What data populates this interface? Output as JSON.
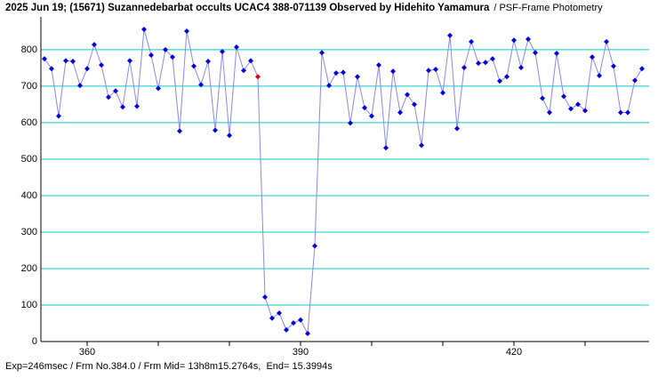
{
  "chart_data": {
    "type": "line",
    "title": "2025 Jun 19; (15671) Suzannedebarbat occults UCAC4 388-071139 Observed by Hidehito Yamamura",
    "subtitle": "/ PSF-Frame Photometry",
    "footer": "Exp=246msec / Frm No.384.0 / Frm Mid= 13h8m15.2764s,  End= 15.3994s",
    "x": [
      354,
      355,
      356,
      357,
      358,
      359,
      360,
      361,
      362,
      363,
      364,
      365,
      366,
      367,
      368,
      369,
      370,
      371,
      372,
      373,
      374,
      375,
      376,
      377,
      378,
      379,
      380,
      381,
      382,
      383,
      384,
      385,
      386,
      387,
      388,
      389,
      390,
      391,
      392,
      393,
      394,
      395,
      396,
      397,
      398,
      399,
      400,
      401,
      402,
      403,
      404,
      405,
      406,
      407,
      408,
      409,
      410,
      411,
      412,
      413,
      414,
      415,
      416,
      417,
      418,
      419,
      420,
      421,
      422,
      423,
      424,
      425,
      426,
      427,
      428,
      429,
      430,
      431,
      432,
      433,
      434,
      435,
      436,
      437,
      438
    ],
    "series": [
      {
        "color": "#0000dd",
        "line_color": "#8888ee",
        "values": [
          775,
          748,
          618,
          770,
          768,
          702,
          748,
          814,
          758,
          670,
          687,
          643,
          770,
          645,
          856,
          785,
          694,
          800,
          780,
          577,
          851,
          755,
          704,
          768,
          579,
          795,
          565,
          807,
          743,
          770,
          726,
          122,
          64,
          78,
          32,
          51,
          59,
          22,
          262,
          792,
          702,
          736,
          738,
          599,
          726,
          641,
          618,
          758,
          531,
          741,
          628,
          677,
          650,
          538,
          743,
          746,
          682,
          839,
          584,
          751,
          822,
          763,
          765,
          775,
          714,
          726,
          826,
          751,
          829,
          792,
          667,
          628,
          790,
          672,
          638,
          650,
          633,
          780,
          729,
          822,
          755,
          628,
          628,
          716,
          748
        ]
      }
    ],
    "highlight_index": 30,
    "highlight_color": "#dd0000",
    "xlim": [
      353.5,
      439
    ],
    "xticks": [
      360,
      390,
      420
    ],
    "xminorticks": [
      370,
      380,
      400,
      410,
      430
    ],
    "ylim": [
      0,
      890
    ],
    "yticks": [
      0,
      100,
      200,
      300,
      400,
      500,
      600,
      700,
      800
    ],
    "grid": true,
    "grid_color": "#00cccc"
  }
}
